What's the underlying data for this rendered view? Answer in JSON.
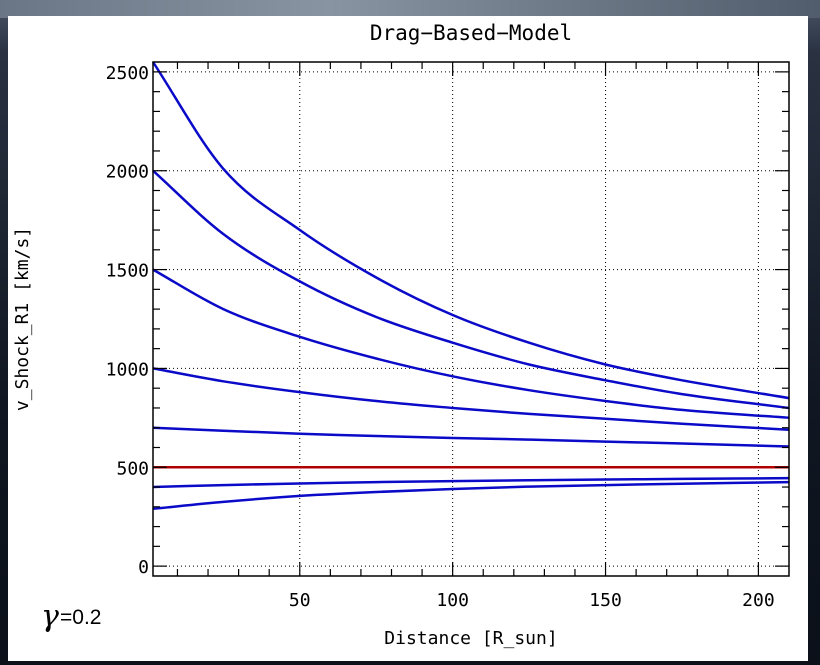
{
  "chart_data": {
    "type": "line",
    "title": "Drag−Based−Model",
    "xlabel": "Distance [R_sun]",
    "ylabel": "v_Shock_R1 [km/s]",
    "xlim": [
      2,
      210
    ],
    "ylim": [
      -50,
      2550
    ],
    "xticks": [
      50,
      100,
      150,
      200
    ],
    "xtick_labels": [
      "50",
      "100",
      "150",
      "200"
    ],
    "yticks": [
      0,
      500,
      1000,
      1500,
      2000,
      2500
    ],
    "ytick_labels": [
      "0",
      "500",
      "1000",
      "1500",
      "2000",
      "2500"
    ],
    "grid": "dotted",
    "annotation": "=0.2",
    "annotation_symbol": "γ",
    "x": [
      2,
      25,
      50,
      75,
      100,
      125,
      150,
      175,
      210
    ],
    "series": [
      {
        "color": "#0a0ac8",
        "values": [
          2550,
          2010,
          1700,
          1460,
          1270,
          1130,
          1020,
          940,
          850
        ]
      },
      {
        "color": "#0a0ac8",
        "values": [
          2000,
          1680,
          1440,
          1260,
          1130,
          1020,
          940,
          870,
          800
        ]
      },
      {
        "color": "#0a0ac8",
        "values": [
          1500,
          1300,
          1160,
          1050,
          960,
          890,
          835,
          790,
          750
        ]
      },
      {
        "color": "#0a0ac8",
        "values": [
          1000,
          935,
          880,
          835,
          800,
          770,
          745,
          720,
          690
        ]
      },
      {
        "color": "#0a0ac8",
        "values": [
          700,
          685,
          670,
          658,
          648,
          640,
          630,
          620,
          605
        ]
      },
      {
        "color": "#b00000",
        "values": [
          500,
          500,
          500,
          500,
          500,
          500,
          500,
          500,
          500
        ]
      },
      {
        "color": "#0a0ac8",
        "values": [
          400,
          410,
          418,
          425,
          430,
          434,
          438,
          441,
          445
        ]
      },
      {
        "color": "#0a0ac8",
        "values": [
          290,
          325,
          355,
          375,
          390,
          402,
          410,
          417,
          425
        ]
      }
    ]
  }
}
